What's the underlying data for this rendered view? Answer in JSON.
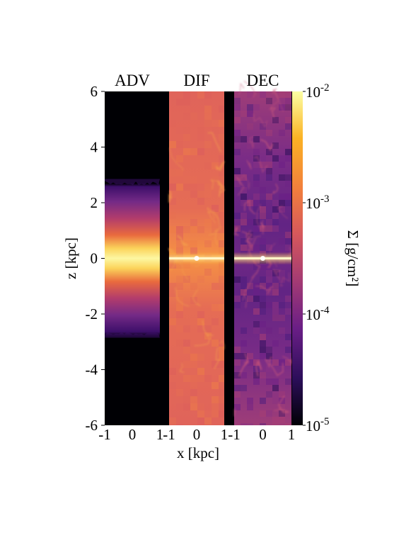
{
  "chart_data": {
    "type": "heatmap",
    "title": "",
    "panels": [
      {
        "name": "ADV",
        "x": [
          -1,
          0,
          1
        ],
        "profile": "compact",
        "disk_value": 0.003,
        "halo_half_height": 2.7,
        "outside_value": 1e-05
      },
      {
        "name": "DIF",
        "x": [
          -1,
          0,
          1
        ],
        "profile": "uniform",
        "background_value": 0.0005,
        "midplane_value": 0.008
      },
      {
        "name": "DEC",
        "x": [
          -1,
          0,
          1
        ],
        "profile": "filamentary",
        "background_value": 0.0001,
        "midplane_value": 0.006
      }
    ],
    "xlabel": "x [kpc]",
    "ylabel": "z [kpc]",
    "xticks": [
      -1,
      0,
      1
    ],
    "xtick_labels": [
      "-1",
      "0",
      "1"
    ],
    "ylim": [
      -6,
      6
    ],
    "yticks": [
      6,
      4,
      2,
      0,
      -2,
      -4,
      -6
    ],
    "ytick_labels": [
      "6",
      "4",
      "2",
      "0",
      "-2",
      "-4",
      "-6"
    ],
    "colorbar": {
      "label": "Σ [g/cm²]",
      "scale": "log",
      "range": [
        1e-05,
        0.01
      ],
      "ticks": [
        {
          "value": 0.01,
          "base": "10",
          "exp": "-2"
        },
        {
          "value": 0.001,
          "base": "10",
          "exp": "-3"
        },
        {
          "value": 0.0001,
          "base": "10",
          "exp": "-4"
        },
        {
          "value": 1e-05,
          "base": "10",
          "exp": "-5"
        }
      ],
      "colormap": "inferno-like",
      "colors": [
        "#000004",
        "#2c0e5a",
        "#6a1e86",
        "#a33a74",
        "#d5575c",
        "#f27f3c",
        "#fbb224",
        "#fcffa4"
      ]
    }
  }
}
